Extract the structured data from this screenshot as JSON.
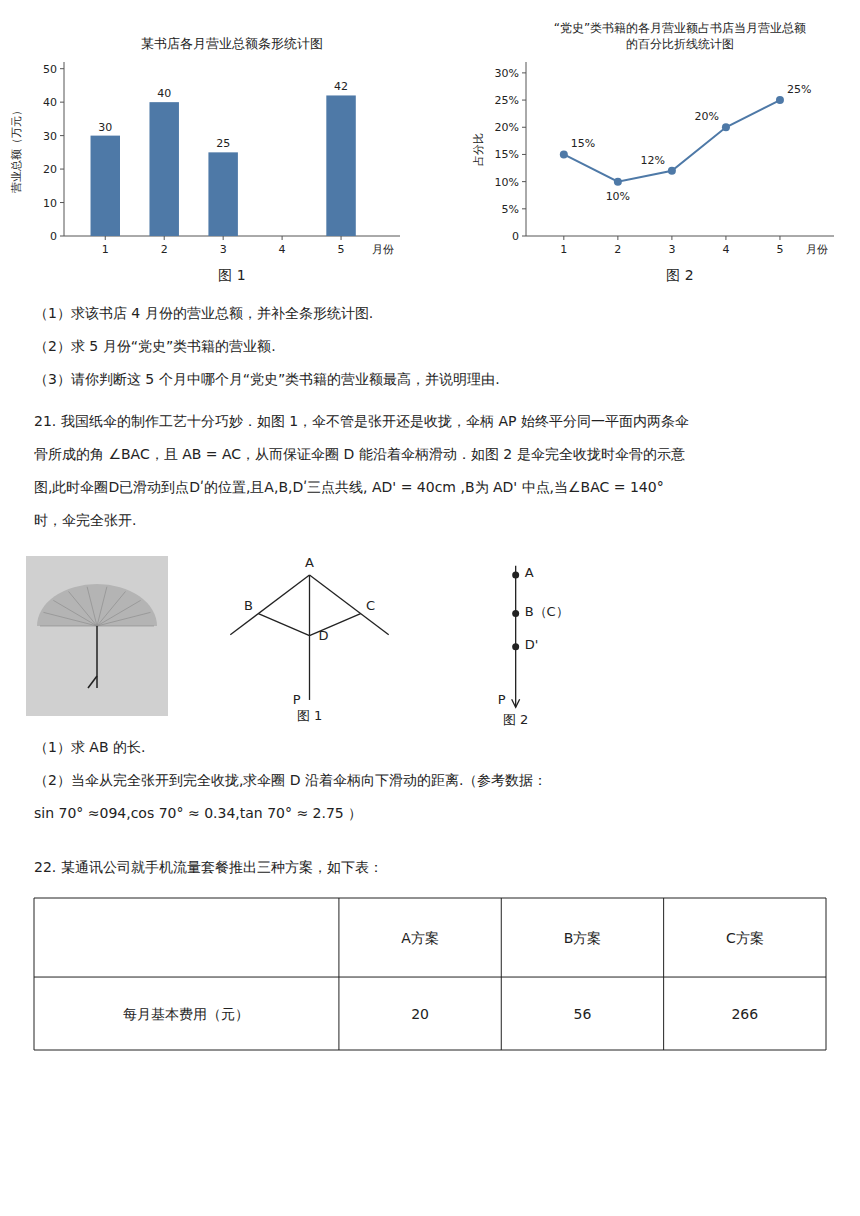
{
  "chart_data": [
    {
      "type": "bar",
      "title": "某书店各月营业总额条形统计图",
      "xlabel": "月份",
      "ylabel": "营业总额（万元）",
      "x": [
        1,
        2,
        3,
        4,
        5
      ],
      "values": [
        30,
        40,
        25,
        null,
        42
      ],
      "xlim": [
        0.3,
        6.0
      ],
      "xticks": [
        1,
        2,
        3,
        4,
        5
      ],
      "ylim": [
        0,
        52
      ],
      "yticks": [
        0,
        10,
        20,
        30,
        40,
        50
      ],
      "data_labels": true,
      "grid": false,
      "annotations": [
        "图 1"
      ]
    },
    {
      "type": "line",
      "title": "“党史”类书籍的各月营业额占书店当月营业总额",
      "subtitle": "的百分比折线统计图",
      "xlabel": "月份",
      "ylabel": "占分比",
      "x": [
        1,
        2,
        3,
        4,
        5
      ],
      "values": [
        0.15,
        0.1,
        0.12,
        0.2,
        0.25
      ],
      "value_labels": [
        "15%",
        "10%",
        "12%",
        "20%",
        "25%"
      ],
      "xlim": [
        0.3,
        6.0
      ],
      "xticks": [
        1,
        2,
        3,
        4,
        5
      ],
      "ylim": [
        0,
        0.32
      ],
      "yticks": [
        0,
        {
          "value": 0.05,
          "label": "5%"
        },
        {
          "value": 0.1,
          "label": "10%"
        },
        {
          "value": 0.15,
          "label": "15%"
        },
        {
          "value": 0.2,
          "label": "20%"
        },
        {
          "value": 0.25,
          "label": "25%"
        },
        {
          "value": 0.3,
          "label": "30%"
        }
      ],
      "data_labels": true,
      "marker": "circle",
      "grid": false,
      "annotations": [
        "图 2"
      ]
    }
  ],
  "text_blocks": [
    [
      "（1）求该书店 4 月份的营业总额，并补全条形统计图.",
      "（2）求 5 月份“党史”类书籍的营业额.",
      "（3）请你判断这 5 个月中哪个月“党史”类书籍的营业额最高，并说明理由."
    ],
    [
      "21. 我国纸伞的制作工艺十分巧妙．如图 1，伞不管是张开还是收拢，伞柄 AP 始终平分同一平面内两条伞",
      "骨所成的角 ∠BAC，且 AB = AC，从而保证伞圈 D 能沿着伞柄滑动．如图 2 是伞完全收拢时伞骨的示意",
      "图,此时伞圈D已滑动到点Dʹ的位置,且A,B,Dʹ三点共线, AD' = 40cm ,B为 AD' 中点,当∠BAC = 140°",
      "时，伞完全张开."
    ],
    [
      "（1）求 AB 的长.",
      "（2）当伞从完全张开到完全收拢,求伞圈 D 沿着伞柄向下滑动的距离.（参考数据：",
      "sin 70° ≈094,cos 70° ≈ 0.34,tan 70° ≈ 2.75 ）"
    ],
    [
      "22. 某通讯公司就手机流量套餐推出三种方案，如下表："
    ]
  ],
  "diagrams": [
    {
      "labels": [
        "A",
        "B",
        "C",
        "D",
        "P"
      ],
      "caption": "图 1"
    },
    {
      "labels": [
        "A",
        "B（C）",
        "D'",
        "P"
      ],
      "caption": "图 2"
    }
  ],
  "table": {
    "headers": [
      "A方案",
      "B方案",
      "C方案"
    ],
    "rows": [
      [
        "每月基本费用（元）",
        "20",
        "56",
        "266"
      ]
    ]
  }
}
